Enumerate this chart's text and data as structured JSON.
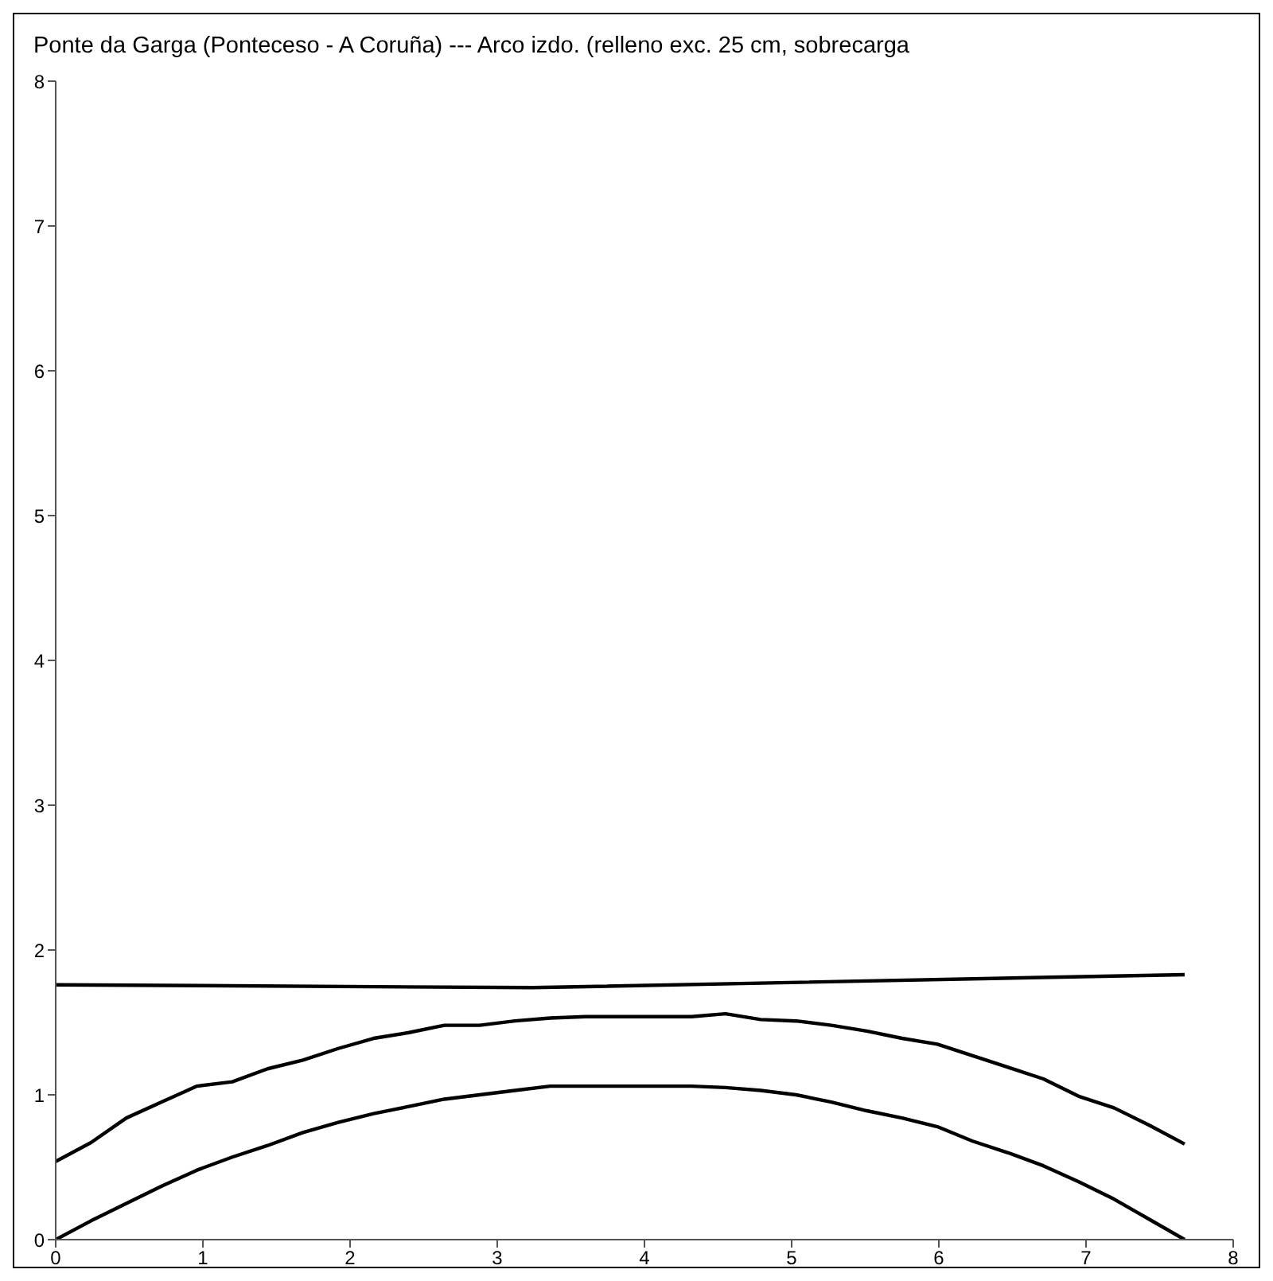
{
  "chart_data": {
    "type": "line",
    "title": "Ponte da Garga (Ponteceso - A Coruña) ---  Arco izdo. (relleno exc. 25 cm, sobrecarga",
    "xlim": [
      0,
      8
    ],
    "xticks": [
      0,
      1,
      2,
      3,
      4,
      5,
      6,
      7,
      8
    ],
    "ylim": [
      0,
      8
    ],
    "yticks": [
      0,
      1,
      2,
      3,
      4,
      5,
      6,
      7,
      8
    ],
    "grid": false,
    "legend": false,
    "marker": "none",
    "line_style": "solid",
    "series": [
      {
        "color": "#000000",
        "x": [
          0,
          3.24,
          7.67
        ],
        "values": [
          1.76,
          1.74,
          1.83
        ]
      },
      {
        "color": "#000000",
        "x": [
          0,
          0.24,
          0.48,
          0.72,
          0.96,
          1.2,
          1.44,
          1.68,
          1.92,
          2.16,
          2.4,
          2.64,
          2.88,
          3.12,
          3.36,
          3.6,
          3.84,
          4.08,
          4.32,
          4.55,
          4.79,
          5.03,
          5.27,
          5.51,
          5.75,
          5.99,
          6.23,
          6.47,
          6.71,
          6.95,
          7.19,
          7.43,
          7.67
        ],
        "values": [
          0.54,
          0.67,
          0.84,
          0.95,
          1.06,
          1.09,
          1.18,
          1.24,
          1.32,
          1.39,
          1.43,
          1.48,
          1.48,
          1.51,
          1.53,
          1.54,
          1.54,
          1.54,
          1.54,
          1.56,
          1.52,
          1.51,
          1.48,
          1.44,
          1.39,
          1.35,
          1.27,
          1.19,
          1.11,
          0.99,
          0.91,
          0.79,
          0.66
        ]
      },
      {
        "color": "#000000",
        "x": [
          0,
          0.24,
          0.48,
          0.72,
          0.96,
          1.2,
          1.44,
          1.68,
          1.92,
          2.16,
          2.4,
          2.64,
          2.88,
          3.12,
          3.36,
          3.6,
          3.84,
          4.08,
          4.32,
          4.55,
          4.79,
          5.03,
          5.27,
          5.51,
          5.75,
          5.99,
          6.23,
          6.47,
          6.71,
          6.95,
          7.19,
          7.43,
          7.67
        ],
        "values": [
          0,
          0.13,
          0.25,
          0.37,
          0.48,
          0.57,
          0.65,
          0.74,
          0.81,
          0.87,
          0.92,
          0.97,
          1.0,
          1.03,
          1.06,
          1.06,
          1.06,
          1.06,
          1.06,
          1.05,
          1.03,
          1.0,
          0.95,
          0.89,
          0.84,
          0.78,
          0.68,
          0.6,
          0.51,
          0.4,
          0.28,
          0.14,
          0
        ]
      }
    ]
  }
}
